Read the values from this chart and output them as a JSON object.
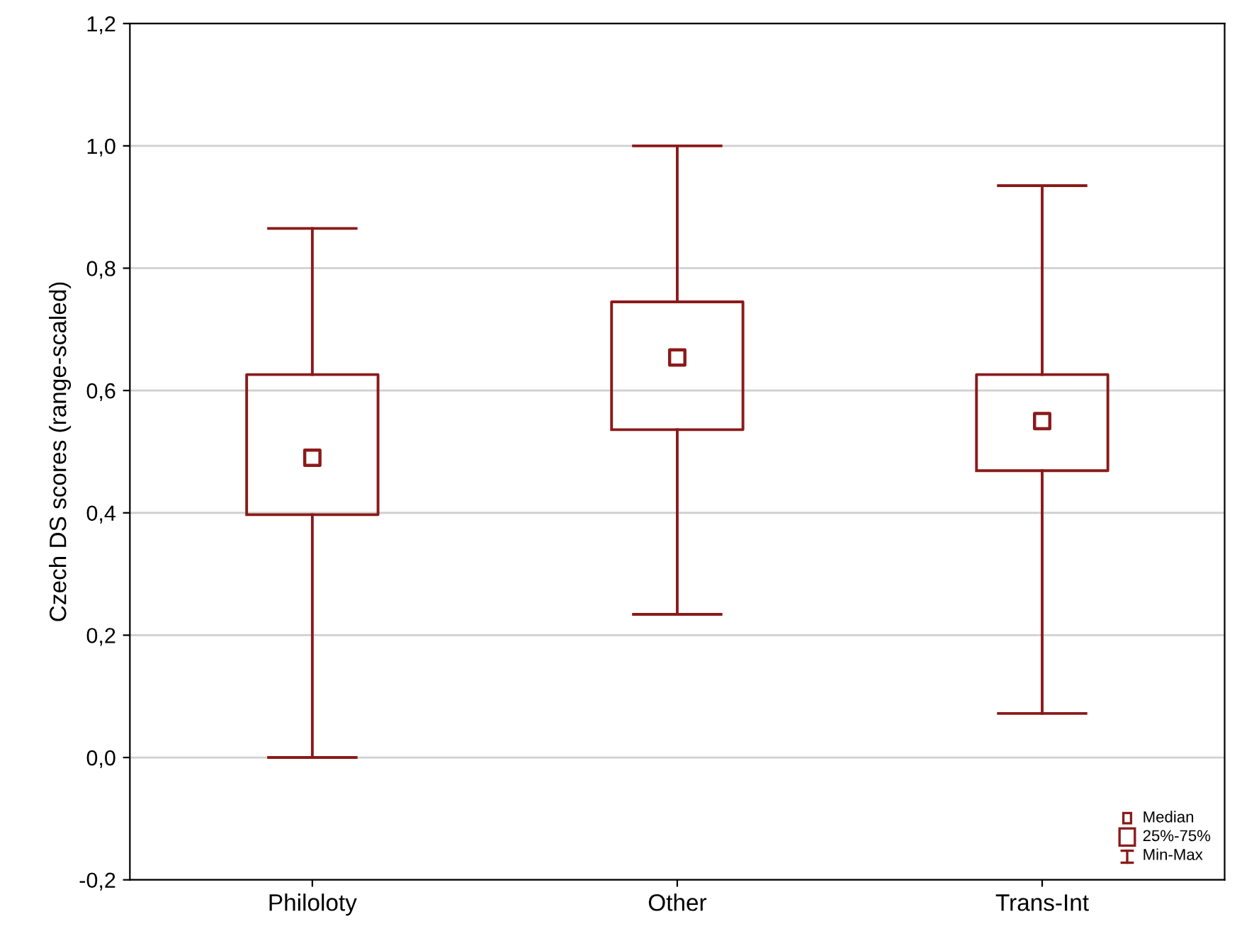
{
  "chart_data": {
    "type": "box",
    "ylabel": "Czech DS scores (range-scaled)",
    "categories": [
      "Philoloty",
      "Other",
      "Trans-Int"
    ],
    "boxes": [
      {
        "low": 0.0,
        "q1": 0.397,
        "median": 0.49,
        "q3": 0.626,
        "high": 0.865
      },
      {
        "low": 0.234,
        "q1": 0.536,
        "median": 0.654,
        "q3": 0.745,
        "high": 1.0
      },
      {
        "low": 0.072,
        "q1": 0.469,
        "median": 0.55,
        "q3": 0.626,
        "high": 0.935
      }
    ],
    "color": "#8b1a1a",
    "ylim": [
      -0.2,
      1.2
    ],
    "yticks": [
      {
        "value": -0.2,
        "label": "-0,2"
      },
      {
        "value": 0.0,
        "label": "0,0"
      },
      {
        "value": 0.2,
        "label": "0,2"
      },
      {
        "value": 0.4,
        "label": "0,4"
      },
      {
        "value": 0.6,
        "label": "0,6"
      },
      {
        "value": 0.8,
        "label": "0,8"
      },
      {
        "value": 1.0,
        "label": "1,0"
      },
      {
        "value": 1.2,
        "label": "1,2"
      }
    ],
    "grid": "y",
    "annotations": [
      "Median",
      "25%-75%",
      "Min-Max"
    ]
  }
}
